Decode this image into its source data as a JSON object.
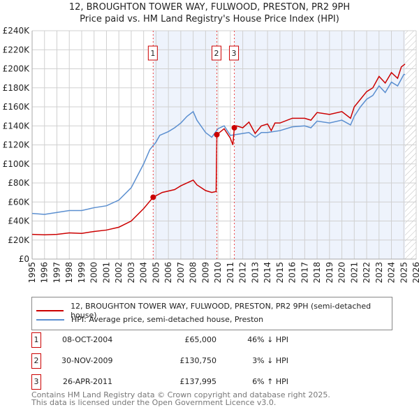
{
  "chart_data": {
    "type": "line",
    "title": "12, BROUGHTON TOWER WAY, FULWOOD, PRESTON, PR2 9PH",
    "subtitle": "Price paid vs. HM Land Registry's House Price Index (HPI)",
    "ylim": [
      0,
      240000
    ],
    "xlim": [
      1995,
      2026
    ],
    "y_ticks": [
      "£0",
      "£20K",
      "£40K",
      "£60K",
      "£80K",
      "£100K",
      "£120K",
      "£140K",
      "£160K",
      "£180K",
      "£200K",
      "£220K",
      "£240K"
    ],
    "x_ticks": [
      "1995",
      "1996",
      "1997",
      "1998",
      "1999",
      "2000",
      "2001",
      "2002",
      "2003",
      "2004",
      "2005",
      "2006",
      "2007",
      "2008",
      "2009",
      "2010",
      "2011",
      "2012",
      "2013",
      "2014",
      "2015",
      "2016",
      "2017",
      "2018",
      "2019",
      "2020",
      "2021",
      "2022",
      "2023",
      "2024",
      "2025",
      "2026"
    ],
    "series": [
      {
        "name": "12, BROUGHTON TOWER WAY, FULWOOD, PRESTON, PR2 9PH (semi-detached house)",
        "color": "#cc0000",
        "x": [
          1995,
          1996,
          1997,
          1998,
          1999,
          2000,
          2001,
          2002,
          2003,
          2004,
          2004.77,
          2005.5,
          2006.5,
          2007,
          2008,
          2008.3,
          2009,
          2009.5,
          2009.85,
          2009.91,
          2010.5,
          2011,
          2011.2,
          2011.32,
          2011.5,
          2012,
          2012.5,
          2013,
          2013.5,
          2014,
          2014.3,
          2014.6,
          2015,
          2016,
          2017,
          2017.5,
          2018,
          2019,
          2020,
          2020.7,
          2021,
          2021.5,
          2022,
          2022.5,
          2023,
          2023.5,
          2024,
          2024.5,
          2024.8,
          2025.1
        ],
        "y": [
          26,
          25.5,
          26,
          27.5,
          27,
          29,
          30.5,
          33.5,
          40,
          53,
          65,
          70,
          73,
          77,
          83,
          78,
          72,
          70,
          71,
          130.75,
          137,
          127,
          120,
          138,
          140,
          138,
          144,
          132,
          140,
          142,
          135,
          143,
          143,
          148,
          148,
          146,
          154,
          152,
          155,
          148,
          160,
          168,
          176,
          180,
          192,
          185,
          196,
          190,
          202,
          205
        ]
      },
      {
        "name": "HPI: Average price, semi-detached house, Preston",
        "color": "#5b8fd0",
        "x": [
          1995,
          1996,
          1997,
          1998,
          1999,
          2000,
          2001,
          2002,
          2003,
          2004,
          2004.5,
          2005,
          2005.3,
          2006,
          2006.5,
          2007,
          2007.5,
          2008,
          2008.3,
          2009,
          2009.5,
          2010,
          2010.5,
          2011,
          2012,
          2012.5,
          2013,
          2013.5,
          2014,
          2015,
          2016,
          2017,
          2017.5,
          2018,
          2019,
          2020,
          2020.7,
          2021,
          2021.5,
          2022,
          2022.5,
          2023,
          2023.5,
          2024,
          2024.5,
          2025,
          2025.1
        ],
        "y": [
          48,
          47,
          49,
          51,
          51,
          54,
          56,
          62,
          75,
          100,
          115,
          123,
          130,
          134,
          138,
          143,
          150,
          155,
          146,
          133,
          128,
          137,
          140,
          130,
          132,
          133,
          128,
          133,
          133,
          135,
          139,
          140,
          138,
          145,
          143,
          146,
          141,
          150,
          160,
          168,
          172,
          182,
          175,
          186,
          182,
          194,
          194
        ]
      }
    ],
    "sales": [
      {
        "label": "1",
        "x": 2004.77,
        "y": 65,
        "date": "08-OCT-2004",
        "price": "£65,000",
        "hpi": "46% ↓ HPI"
      },
      {
        "label": "2",
        "x": 2009.91,
        "y": 130.75,
        "date": "30-NOV-2009",
        "price": "£130,750",
        "hpi": "3% ↓ HPI"
      },
      {
        "label": "3",
        "x": 2011.32,
        "y": 137.995,
        "date": "26-APR-2011",
        "price": "£137,995",
        "hpi": "6% ↑ HPI"
      }
    ]
  },
  "footer": [
    "Contains HM Land Registry data © Crown copyright and database right 2025.",
    "This data is licensed under the Open Government Licence v3.0."
  ]
}
